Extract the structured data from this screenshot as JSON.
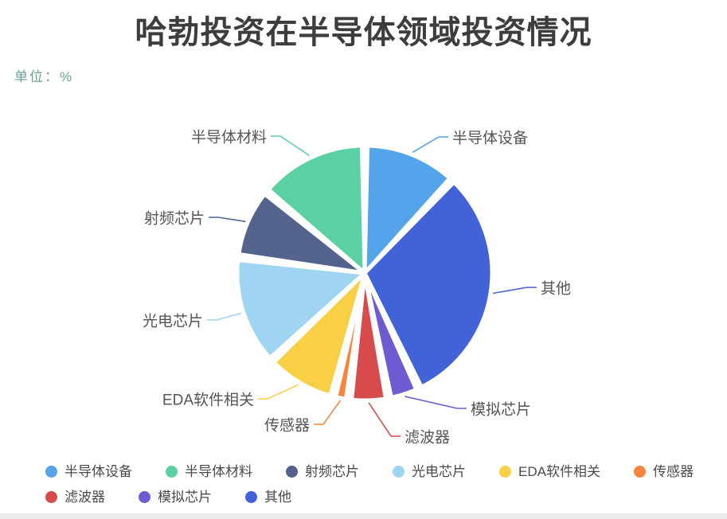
{
  "header": {
    "title": "哈勃投资在半导体领域投资情况",
    "unit_label": "单位：%"
  },
  "chart_data": {
    "type": "pie",
    "title": "哈勃投资在半导体领域投资情况",
    "unit": "%",
    "direction": "clockwise",
    "start_angle": "top",
    "legend_position": "bottom-left",
    "series": [
      {
        "name": "半导体设备",
        "value": 12,
        "color": "#54A4EC"
      },
      {
        "name": "其他",
        "value": 31,
        "color": "#4263D8"
      },
      {
        "name": "模拟芯片",
        "value": 4,
        "color": "#6E5BD2"
      },
      {
        "name": "滤波器",
        "value": 5,
        "color": "#D84B4C"
      },
      {
        "name": "传感器",
        "value": 2,
        "color": "#F6863F"
      },
      {
        "name": "EDA软件相关",
        "value": 9,
        "color": "#F9CF45"
      },
      {
        "name": "光电芯片",
        "value": 14,
        "color": "#A0D5F2"
      },
      {
        "name": "射频芯片",
        "value": 9,
        "color": "#54638E"
      },
      {
        "name": "半导体材料",
        "value": 14,
        "color": "#5BD1A3"
      }
    ]
  },
  "legend": {
    "items": [
      {
        "label": "半导体设备",
        "color": "#54A4EC"
      },
      {
        "label": "半导体材料",
        "color": "#5BD1A3"
      },
      {
        "label": "射频芯片",
        "color": "#54638E"
      },
      {
        "label": "光电芯片",
        "color": "#A0D5F2"
      },
      {
        "label": "EDA软件相关",
        "color": "#F9CF45"
      },
      {
        "label": "传感器",
        "color": "#F6863F"
      },
      {
        "label": "滤波器",
        "color": "#D84B4C"
      },
      {
        "label": "模拟芯片",
        "color": "#6E5BD2"
      },
      {
        "label": "其他",
        "color": "#4263D8"
      }
    ]
  }
}
